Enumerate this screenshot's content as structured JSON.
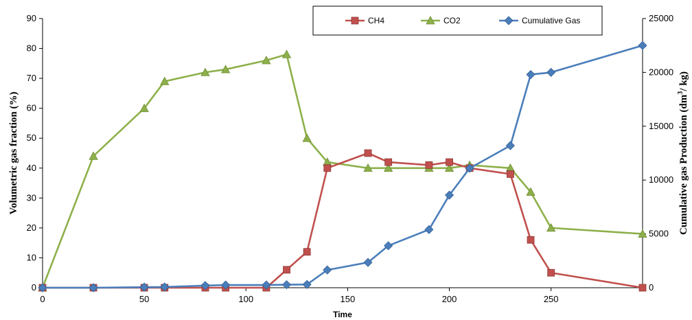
{
  "chart_data": {
    "type": "line",
    "xlabel": "Time",
    "ylabel_left": "Volumetric gas fraction (%)",
    "ylabel_right_prefix": "Cumulative gas Production (dm",
    "ylabel_right_sup": "3",
    "ylabel_right_suffix": "/ kg)",
    "xlim": [
      0,
      295
    ],
    "xticks": [
      0,
      50,
      100,
      150,
      200,
      250
    ],
    "ylim_left": [
      0,
      90
    ],
    "yticks_left": [
      0,
      10,
      20,
      30,
      40,
      50,
      60,
      70,
      80,
      90
    ],
    "ylim_right": [
      0,
      25000
    ],
    "yticks_right": [
      0,
      5000,
      10000,
      15000,
      20000,
      25000
    ],
    "grid": false,
    "legend_position": "top",
    "series": [
      {
        "name": "CH4",
        "axis": "left",
        "marker": "square",
        "color": "#c0504d",
        "points": [
          [
            0,
            0
          ],
          [
            25,
            0
          ],
          [
            50,
            0
          ],
          [
            60,
            0
          ],
          [
            80,
            0
          ],
          [
            90,
            0
          ],
          [
            110,
            0
          ],
          [
            120,
            6
          ],
          [
            130,
            12
          ],
          [
            140,
            40
          ],
          [
            160,
            45
          ],
          [
            170,
            42
          ],
          [
            190,
            41
          ],
          [
            200,
            42
          ],
          [
            210,
            40
          ],
          [
            230,
            38
          ],
          [
            240,
            16
          ],
          [
            250,
            5
          ],
          [
            295,
            0
          ]
        ]
      },
      {
        "name": "CO2",
        "axis": "left",
        "marker": "triangle",
        "color": "#8db04a",
        "points": [
          [
            0,
            0
          ],
          [
            25,
            44
          ],
          [
            50,
            60
          ],
          [
            60,
            69
          ],
          [
            80,
            72
          ],
          [
            90,
            73
          ],
          [
            110,
            76
          ],
          [
            120,
            78
          ],
          [
            130,
            50
          ],
          [
            140,
            42
          ],
          [
            160,
            40
          ],
          [
            170,
            40
          ],
          [
            190,
            40
          ],
          [
            200,
            40
          ],
          [
            210,
            41
          ],
          [
            230,
            40
          ],
          [
            240,
            32
          ],
          [
            250,
            20
          ],
          [
            295,
            18
          ]
        ]
      },
      {
        "name": "Cumulative Gas",
        "axis": "right",
        "marker": "diamond",
        "color": "#4a7ebb",
        "points": [
          [
            0,
            0
          ],
          [
            25,
            0
          ],
          [
            50,
            50
          ],
          [
            60,
            70
          ],
          [
            80,
            200
          ],
          [
            90,
            250
          ],
          [
            110,
            250
          ],
          [
            120,
            280
          ],
          [
            130,
            300
          ],
          [
            140,
            1650
          ],
          [
            160,
            2350
          ],
          [
            170,
            3900
          ],
          [
            190,
            5400
          ],
          [
            200,
            8600
          ],
          [
            210,
            11100
          ],
          [
            230,
            13200
          ],
          [
            240,
            19800
          ],
          [
            250,
            20000
          ],
          [
            295,
            22500
          ]
        ]
      }
    ]
  }
}
